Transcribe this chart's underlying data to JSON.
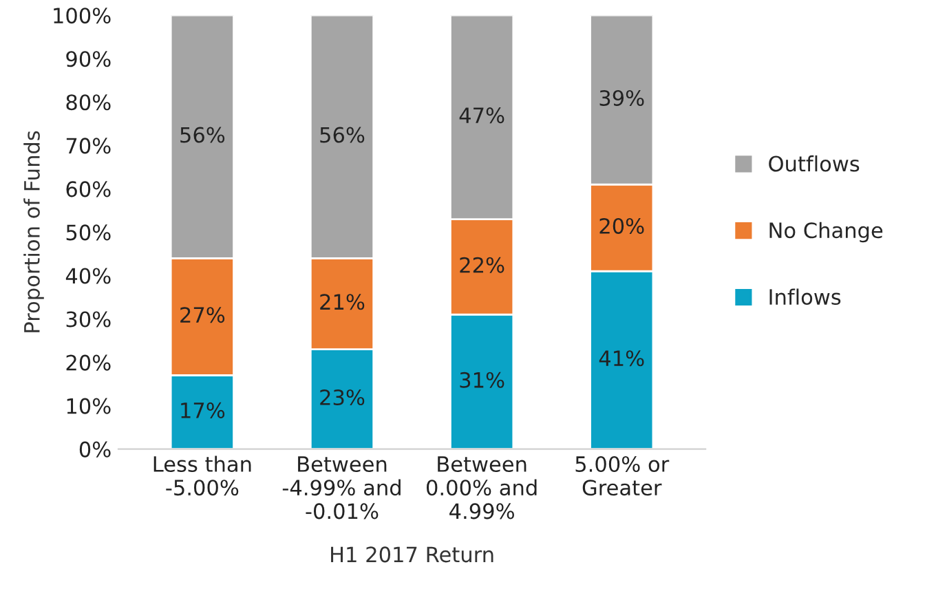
{
  "chart_data": {
    "type": "bar",
    "stacked": true,
    "xlabel": "H1 2017 Return",
    "ylabel": "Proportion of Funds",
    "categories": [
      "Less than\n-5.00%",
      "Between\n-4.99% and\n-0.01%",
      "Between\n0.00% and\n4.99%",
      "5.00% or\nGreater"
    ],
    "series": [
      {
        "name": "Inflows",
        "color": "#0aa3c6",
        "values": [
          17,
          23,
          31,
          41
        ],
        "value_labels": [
          "17%",
          "23%",
          "31%",
          "41%"
        ]
      },
      {
        "name": "No Change",
        "color": "#ed7d31",
        "values": [
          27,
          21,
          22,
          20
        ],
        "value_labels": [
          "27%",
          "21%",
          "22%",
          "20%"
        ]
      },
      {
        "name": "Outflows",
        "color": "#a5a5a5",
        "values": [
          56,
          56,
          47,
          39
        ],
        "value_labels": [
          "56%",
          "56%",
          "47%",
          "39%"
        ]
      }
    ],
    "ylim": [
      0,
      100
    ],
    "yticks": [
      {
        "value": 0,
        "label": "0%"
      },
      {
        "value": 10,
        "label": "10%"
      },
      {
        "value": 20,
        "label": "20%"
      },
      {
        "value": 30,
        "label": "30%"
      },
      {
        "value": 40,
        "label": "40%"
      },
      {
        "value": 50,
        "label": "50%"
      },
      {
        "value": 60,
        "label": "60%"
      },
      {
        "value": 70,
        "label": "70%"
      },
      {
        "value": 80,
        "label": "80%"
      },
      {
        "value": 90,
        "label": "90%"
      },
      {
        "value": 100,
        "label": "100%"
      }
    ],
    "grid": false,
    "legend": "right"
  }
}
